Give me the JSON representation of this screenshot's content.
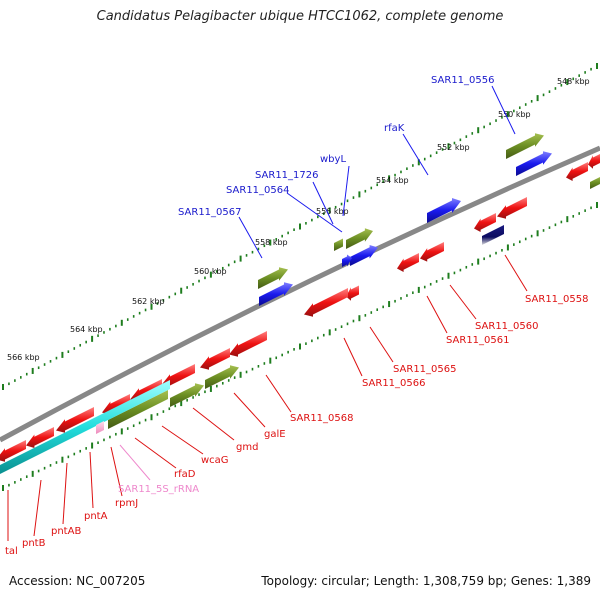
{
  "title": "Candidatus Pelagibacter ubique HTCC1062, complete genome",
  "footer": {
    "accession": "Accession: NC_007205",
    "topology": "Topology: circular; Length: 1,308,759 bp; Genes: 1,389"
  },
  "colors": {
    "backbone": "#888888",
    "ruler_ticks": "#1e7d1e",
    "cds_forward": "#1a1aee",
    "cds_reverse": "#ee1111",
    "gene_olive": "#6b8e23",
    "rrna": "#00cccc",
    "label_forward": "#0000cc",
    "label_reverse": "#dd0000",
    "label_rna": "#ee88cc"
  },
  "ruler": {
    "labels": [
      "548 kbp",
      "550 kbp",
      "552 kbp",
      "554 kbp",
      "556 kbp",
      "558 kbp",
      "560 kbp",
      "562 kbp",
      "564 kbp",
      "566 kbp"
    ]
  },
  "gene_labels_top": [
    "SAR11_0556",
    "rfaK",
    "wbyL",
    "SAR11_1726",
    "SAR11_0564",
    "SAR11_0567"
  ],
  "gene_labels_bottom": [
    "SAR11_0558",
    "SAR11_0560",
    "SAR11_0561",
    "SAR11_0565",
    "SAR11_0566",
    "SAR11_0568",
    "galE",
    "gmd",
    "wcaG",
    "rfaD",
    "SAR11_5S_rRNA",
    "rpmJ",
    "pntA",
    "pntAB",
    "pntB",
    "tal"
  ]
}
